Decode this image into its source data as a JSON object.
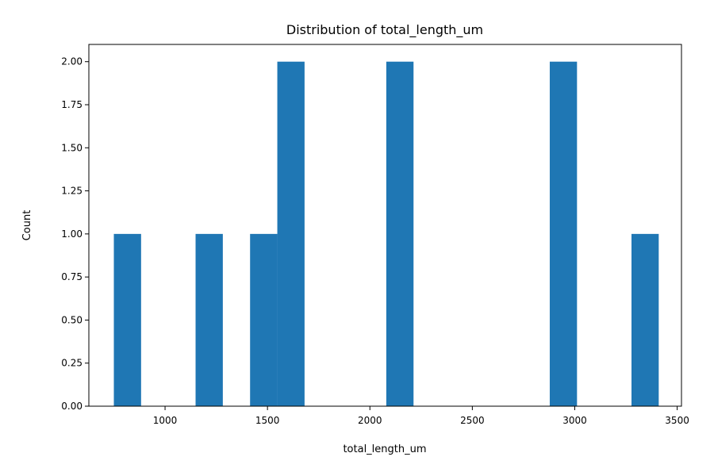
{
  "chart_data": {
    "type": "bar",
    "title": "Distribution of total_length_um",
    "xlabel": "total_length_um",
    "ylabel": "Count",
    "xlim": [
      628,
      3521
    ],
    "ylim": [
      0,
      2.1
    ],
    "grid": false,
    "bar_color": "#1f77b4",
    "x_ticks": [
      1000,
      1500,
      2000,
      2500,
      3000,
      3500
    ],
    "y_ticks": [
      "0.00",
      "0.25",
      "0.50",
      "0.75",
      "1.00",
      "1.25",
      "1.50",
      "1.75",
      "2.00"
    ],
    "bins": [
      {
        "start": 750,
        "end": 883,
        "count": 1
      },
      {
        "start": 883,
        "end": 1016,
        "count": 0
      },
      {
        "start": 1016,
        "end": 1149,
        "count": 0
      },
      {
        "start": 1149,
        "end": 1282,
        "count": 1
      },
      {
        "start": 1282,
        "end": 1415,
        "count": 0
      },
      {
        "start": 1415,
        "end": 1548,
        "count": 1
      },
      {
        "start": 1548,
        "end": 1681,
        "count": 2
      },
      {
        "start": 1681,
        "end": 1814,
        "count": 0
      },
      {
        "start": 1814,
        "end": 1947,
        "count": 0
      },
      {
        "start": 1947,
        "end": 2080,
        "count": 0
      },
      {
        "start": 2080,
        "end": 2213,
        "count": 2
      },
      {
        "start": 2213,
        "end": 2346,
        "count": 0
      },
      {
        "start": 2346,
        "end": 2479,
        "count": 0
      },
      {
        "start": 2479,
        "end": 2612,
        "count": 0
      },
      {
        "start": 2612,
        "end": 2745,
        "count": 0
      },
      {
        "start": 2745,
        "end": 2878,
        "count": 0
      },
      {
        "start": 2878,
        "end": 3011,
        "count": 2
      },
      {
        "start": 3011,
        "end": 3144,
        "count": 0
      },
      {
        "start": 3144,
        "end": 3277,
        "count": 0
      },
      {
        "start": 3277,
        "end": 3410,
        "count": 1
      }
    ]
  }
}
